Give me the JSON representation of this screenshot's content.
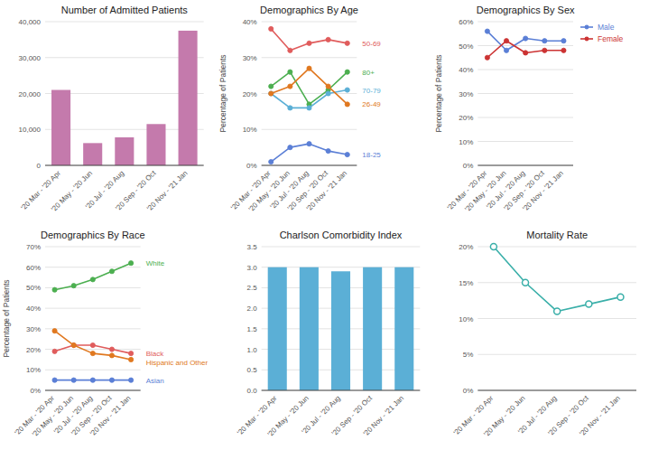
{
  "chart_data": [
    {
      "type": "bar",
      "title": "Number of Admitted Patients",
      "categories": [
        "'20 Mar - '20 Apr",
        "'20 May - '20 Jun",
        "'20 Jul - '20 Aug",
        "'20 Sep - '20 Oct",
        "'20 Nov - '21 Jan"
      ],
      "values": [
        21000,
        6200,
        7800,
        11500,
        37500
      ],
      "color": "#c47aac",
      "ylim": [
        0,
        40000
      ],
      "yticks": [
        0,
        {
          "value": 10000,
          "label": "10,000"
        },
        {
          "value": 20000,
          "label": "20,000"
        },
        {
          "value": 30000,
          "label": "30,000"
        },
        {
          "value": 40000,
          "label": "40,000"
        }
      ],
      "grid": true
    },
    {
      "type": "line",
      "title": "Demographics By Age",
      "y_label": "Percentage of Patients",
      "categories": [
        "'20 Mar - '20 Apr",
        "'20 May - '20 Jun",
        "'20 Jul - '20 Aug",
        "'20 Sep - '20 Oct",
        "'20 Nov - '21 Jan"
      ],
      "series": [
        {
          "name": "50-69",
          "color": "#e05c5c",
          "values": [
            38,
            32,
            34,
            35,
            34
          ]
        },
        {
          "name": "80+",
          "color": "#4caf50",
          "values": [
            22,
            26,
            17,
            21,
            26
          ]
        },
        {
          "name": "70-79",
          "color": "#5bafd6",
          "values": [
            20,
            16,
            16,
            20,
            21
          ]
        },
        {
          "name": "26-49",
          "color": "#e07820",
          "values": [
            20,
            22,
            27,
            22,
            17
          ]
        },
        {
          "name": "18-25",
          "color": "#5b7fd6",
          "values": [
            1,
            5,
            6,
            4,
            3
          ]
        }
      ],
      "ylim": [
        0,
        40
      ],
      "yticks": [
        {
          "value": 0,
          "label": "0%"
        },
        {
          "value": 10,
          "label": "10%"
        },
        {
          "value": 20,
          "label": "20%"
        },
        {
          "value": 30,
          "label": "30%"
        },
        {
          "value": 40,
          "label": "40%"
        }
      ],
      "grid": true,
      "marker": "circle"
    },
    {
      "type": "line",
      "title": "Demographics By Sex",
      "y_label": "Percentage of Patients",
      "categories": [
        "'20 Mar - '20 Apr",
        "'20 May - '20 Jun",
        "'20 Jul - '20 Aug",
        "'20 Sep - '20 Oct",
        "'20 Nov - '21 Jan"
      ],
      "series": [
        {
          "name": "Male",
          "color": "#5b7fd6",
          "values": [
            56,
            48,
            53,
            52,
            52
          ]
        },
        {
          "name": "Female",
          "color": "#cc3333",
          "values": [
            45,
            52,
            47,
            48,
            48
          ]
        }
      ],
      "ylim": [
        0,
        60
      ],
      "yticks": [
        {
          "value": 0,
          "label": "0%"
        },
        {
          "value": 10,
          "label": "10%"
        },
        {
          "value": 20,
          "label": "20%"
        },
        {
          "value": 30,
          "label": "30%"
        },
        {
          "value": 40,
          "label": "40%"
        },
        {
          "value": 50,
          "label": "50%"
        },
        {
          "value": 60,
          "label": "60%"
        }
      ],
      "grid": true,
      "legend": "upper right",
      "marker": "circle"
    },
    {
      "type": "line",
      "title": "Demographics By Race",
      "y_label": "Percentage of Patients",
      "categories": [
        "'20 Mar - '20 Apr",
        "'20 May - '20 Jun",
        "'20 Jul - '20 Aug",
        "'20 Sep - '20 Oct",
        "'20 Nov - '21 Jan"
      ],
      "series": [
        {
          "name": "White",
          "color": "#4caf50",
          "values": [
            49,
            51,
            54,
            58,
            62
          ]
        },
        {
          "name": "Black",
          "color": "#e05c5c",
          "values": [
            19,
            22,
            22,
            20,
            18
          ]
        },
        {
          "name": "Hispanic and Other",
          "color": "#e07820",
          "values": [
            29,
            22,
            18,
            17,
            15
          ]
        },
        {
          "name": "Asian",
          "color": "#5b7fd6",
          "values": [
            5,
            5,
            5,
            5,
            5
          ]
        }
      ],
      "ylim": [
        0,
        70
      ],
      "yticks": [
        {
          "value": 0,
          "label": "0%"
        },
        {
          "value": 10,
          "label": "10%"
        },
        {
          "value": 20,
          "label": "20%"
        },
        {
          "value": 30,
          "label": "30%"
        },
        {
          "value": 40,
          "label": "40%"
        },
        {
          "value": 50,
          "label": "50%"
        },
        {
          "value": 60,
          "label": "60%"
        },
        {
          "value": 70,
          "label": "70%"
        }
      ],
      "grid": true,
      "marker": "circle"
    },
    {
      "type": "bar",
      "title": "Charlson Comorbidity Index",
      "categories": [
        "'20 Mar - '20 Apr",
        "'20 May - '20 Jun",
        "'20 Jul - '20 Aug",
        "'20 Sep - '20 Oct",
        "'20 Nov - '21 Jan"
      ],
      "values": [
        3.0,
        3.0,
        2.9,
        3.0,
        3.0
      ],
      "color": "#5bafd6",
      "ylim": [
        0,
        3.5
      ],
      "yticks": [
        {
          "value": 0,
          "label": "0.0"
        },
        0.5,
        {
          "value": 1,
          "label": "1.0"
        },
        1.5,
        {
          "value": 2,
          "label": "2.0"
        },
        2.5,
        {
          "value": 3,
          "label": "3.0"
        },
        3.5
      ],
      "grid": true
    },
    {
      "type": "line",
      "title": "Mortality Rate",
      "categories": [
        "'20 Mar - '20 Apr",
        "'20 May - '20 Jun",
        "'20 Jul - '20 Aug",
        "'20 Sep - '20 Oct",
        "'20 Nov - '21 Jan"
      ],
      "values": [
        20,
        15,
        11,
        12,
        13
      ],
      "color": "#3aafa9",
      "ylim": [
        0,
        20
      ],
      "yticks": [
        {
          "value": 0,
          "label": "0%"
        },
        {
          "value": 5,
          "label": "5%"
        },
        {
          "value": 10,
          "label": "10%"
        },
        {
          "value": 15,
          "label": "15%"
        },
        {
          "value": 20,
          "label": "20%"
        }
      ],
      "grid": true,
      "marker": "open-circle"
    }
  ]
}
